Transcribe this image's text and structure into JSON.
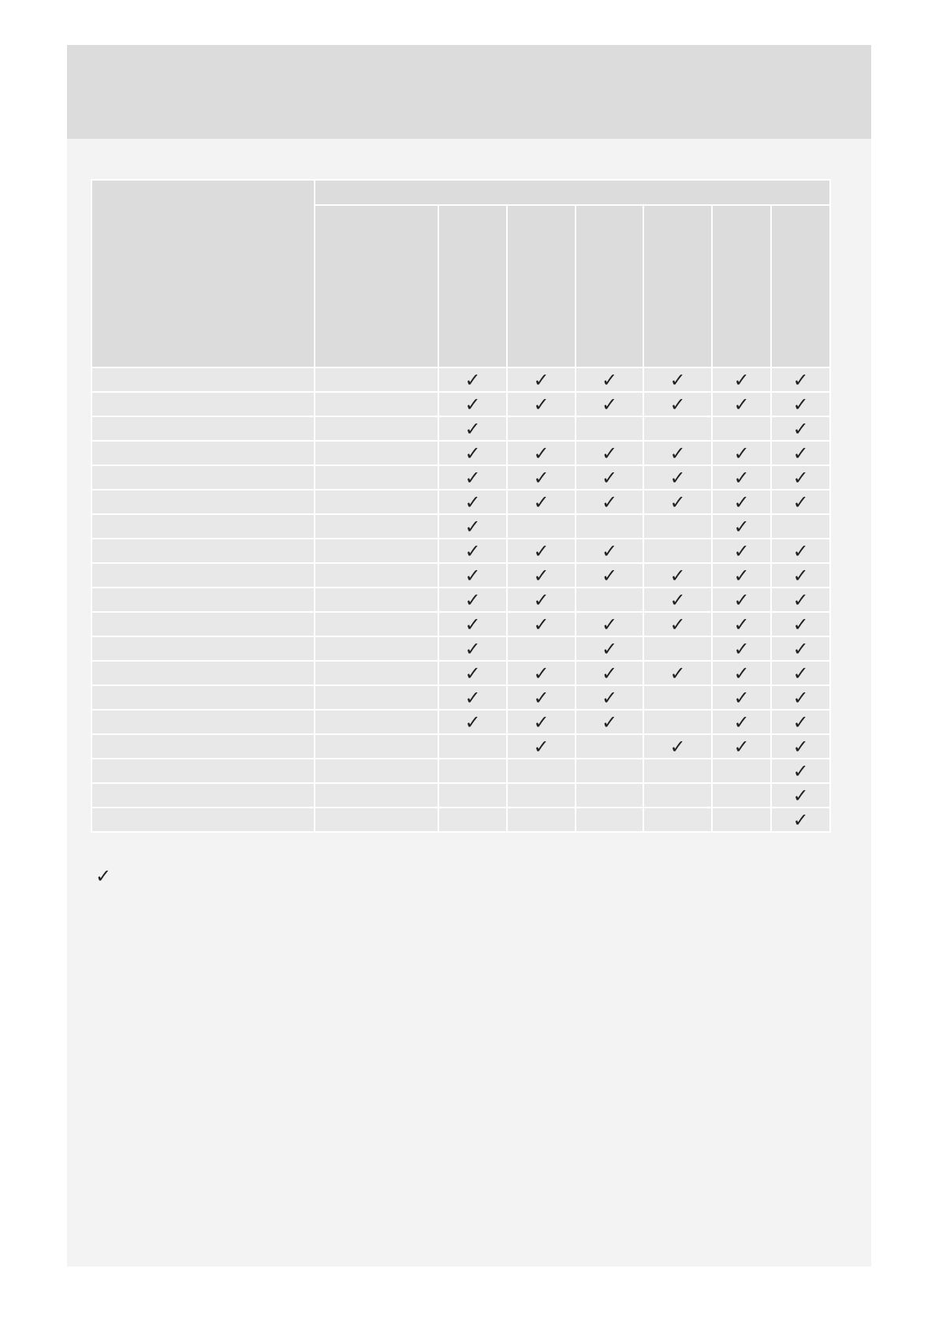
{
  "colors": {
    "page": "#f3f3f3",
    "header_band": "#dcdcdc",
    "header_cell": "#dcdcdc",
    "cell": "#e8e8e8",
    "check": "#222222"
  },
  "check_icon": "checkmark-icon",
  "check_glyph": "✓",
  "table": {
    "check_columns": 6,
    "rows": [
      [
        1,
        1,
        1,
        1,
        1,
        1
      ],
      [
        1,
        1,
        1,
        1,
        1,
        1
      ],
      [
        1,
        0,
        0,
        0,
        0,
        1
      ],
      [
        1,
        1,
        1,
        1,
        1,
        1
      ],
      [
        1,
        1,
        1,
        1,
        1,
        1
      ],
      [
        1,
        1,
        1,
        1,
        1,
        1
      ],
      [
        1,
        0,
        0,
        0,
        1,
        0
      ],
      [
        1,
        1,
        1,
        0,
        1,
        1
      ],
      [
        1,
        1,
        1,
        1,
        1,
        1
      ],
      [
        1,
        1,
        0,
        1,
        1,
        1
      ],
      [
        1,
        1,
        1,
        1,
        1,
        1
      ],
      [
        1,
        0,
        1,
        0,
        1,
        1
      ],
      [
        1,
        1,
        1,
        1,
        1,
        1
      ],
      [
        1,
        1,
        1,
        0,
        1,
        1
      ],
      [
        1,
        1,
        1,
        0,
        1,
        1
      ],
      [
        0,
        1,
        0,
        1,
        1,
        1
      ],
      [
        0,
        0,
        0,
        0,
        0,
        1
      ],
      [
        0,
        0,
        0,
        0,
        0,
        1
      ],
      [
        0,
        0,
        0,
        0,
        0,
        1
      ]
    ]
  },
  "legend": {
    "glyph": "✓"
  }
}
